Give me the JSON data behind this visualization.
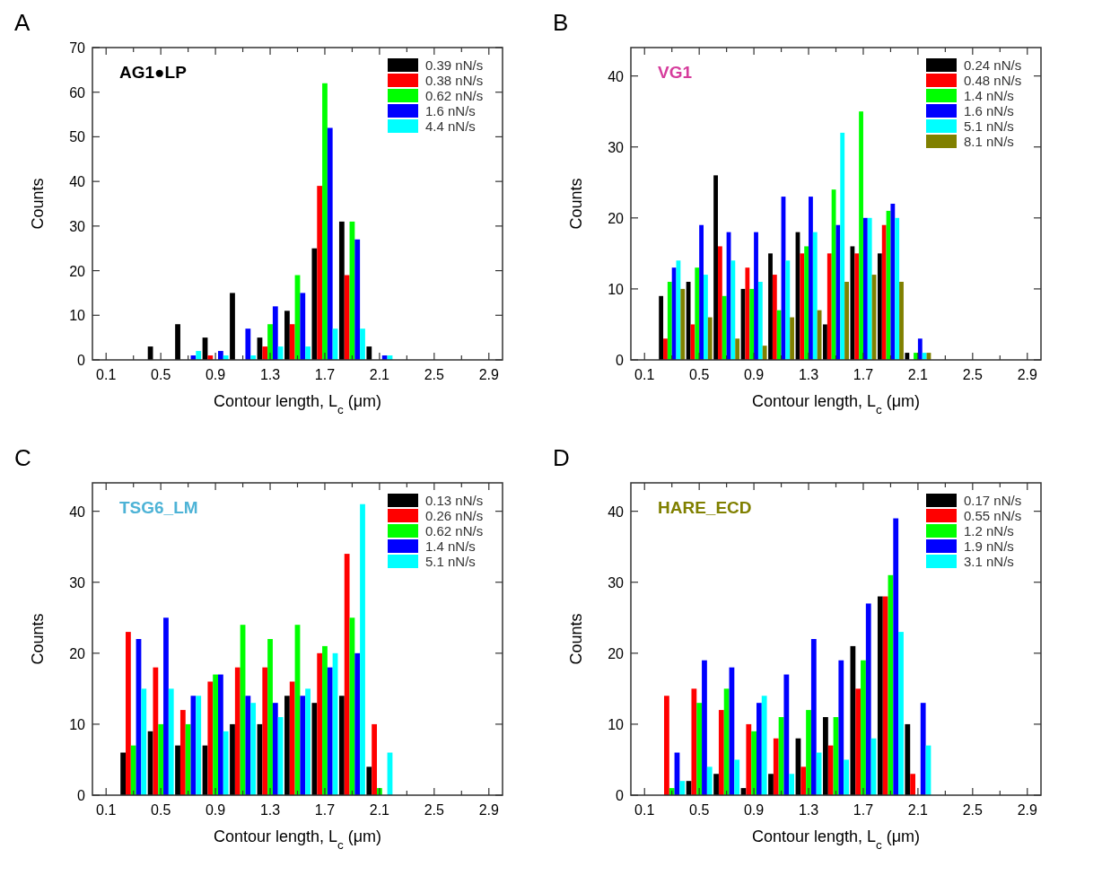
{
  "chart_data": [
    {
      "type": "bar",
      "title": "A",
      "annotations": [
        "AG1●LP"
      ],
      "xlabel": "Contour length, L$_{c}$ (μm)",
      "ylabel": "Counts",
      "x": [
        0.3,
        0.5,
        0.7,
        0.9,
        1.1,
        1.3,
        1.5,
        1.7,
        1.9,
        2.1
      ],
      "xlim": [
        0,
        3
      ],
      "xticks": [
        0.1,
        {
          "value": 0.3,
          "label": null
        },
        0.5,
        {
          "value": 0.7,
          "label": null
        },
        0.9,
        {
          "value": 1.1,
          "label": null
        },
        1.3,
        {
          "value": 1.5,
          "label": null
        },
        1.7,
        {
          "value": 1.9,
          "label": null
        },
        2.1,
        {
          "value": 2.3,
          "label": null
        },
        2.5,
        {
          "value": 2.7,
          "label": null
        },
        2.9
      ],
      "ylim": [
        0,
        70
      ],
      "yticks": [
        0,
        10,
        20,
        30,
        40,
        50,
        60,
        70
      ],
      "legend": "top right",
      "grid": false,
      "series": [
        {
          "name": "0.39 nN/s",
          "color": "#000000",
          "values": [
            0,
            3,
            8,
            5,
            15,
            5,
            11,
            25,
            31,
            3
          ]
        },
        {
          "name": "0.38 nN/s",
          "color": "#ff0000",
          "values": [
            0,
            0,
            0,
            1,
            0,
            3,
            8,
            39,
            19,
            0
          ]
        },
        {
          "name": "0.62 nN/s",
          "color": "#00ff00",
          "values": [
            0,
            0,
            0,
            0,
            0,
            8,
            19,
            62,
            31,
            0
          ]
        },
        {
          "name": "1.6 nN/s",
          "color": "#0000ff",
          "values": [
            0,
            0,
            1,
            2,
            7,
            12,
            15,
            52,
            27,
            1
          ]
        },
        {
          "name": "4.4 nN/s",
          "color": "#00ffff",
          "values": [
            0,
            0,
            2,
            1,
            1,
            3,
            3,
            7,
            7,
            1
          ]
        }
      ]
    },
    {
      "type": "bar",
      "title": "B",
      "annotations": [
        "VG1"
      ],
      "xlabel": "Contour length, L$_{c}$ (μm)",
      "ylabel": "Counts",
      "x": [
        0.3,
        0.5,
        0.7,
        0.9,
        1.1,
        1.3,
        1.5,
        1.7,
        1.9,
        2.1
      ],
      "xlim": [
        0,
        3
      ],
      "xticks": [
        0.1,
        {
          "value": 0.3,
          "label": null
        },
        0.5,
        {
          "value": 0.7,
          "label": null
        },
        0.9,
        {
          "value": 1.1,
          "label": null
        },
        1.3,
        {
          "value": 1.5,
          "label": null
        },
        1.7,
        {
          "value": 1.9,
          "label": null
        },
        2.1,
        {
          "value": 2.3,
          "label": null
        },
        2.5,
        {
          "value": 2.7,
          "label": null
        },
        2.9
      ],
      "ylim": [
        0,
        44
      ],
      "yticks": [
        0,
        10,
        20,
        30,
        40
      ],
      "legend": "top right",
      "grid": false,
      "series": [
        {
          "name": "0.24 nN/s",
          "color": "#000000",
          "values": [
            9,
            11,
            26,
            10,
            15,
            18,
            5,
            16,
            15,
            1
          ]
        },
        {
          "name": "0.48 nN/s",
          "color": "#ff0000",
          "values": [
            3,
            5,
            16,
            13,
            12,
            15,
            15,
            15,
            19,
            0
          ]
        },
        {
          "name": "1.4 nN/s",
          "color": "#00ff00",
          "values": [
            11,
            13,
            9,
            10,
            7,
            16,
            24,
            35,
            21,
            1
          ]
        },
        {
          "name": "1.6 nN/s",
          "color": "#0000ff",
          "values": [
            13,
            19,
            18,
            18,
            23,
            23,
            19,
            20,
            22,
            3
          ]
        },
        {
          "name": "5.1 nN/s",
          "color": "#00ffff",
          "values": [
            14,
            12,
            14,
            11,
            14,
            18,
            32,
            20,
            20,
            1
          ]
        },
        {
          "name": "8.1 nN/s",
          "color": "#808000",
          "values": [
            10,
            6,
            3,
            2,
            6,
            7,
            11,
            12,
            11,
            1
          ]
        }
      ]
    },
    {
      "type": "bar",
      "title": "C",
      "annotations": [
        "TSG6_LM"
      ],
      "xlabel": "Contour length, L$_{c}$ (μm)",
      "ylabel": "Counts",
      "x": [
        0.3,
        0.5,
        0.7,
        0.9,
        1.1,
        1.3,
        1.5,
        1.7,
        1.9,
        2.1
      ],
      "xlim": [
        0,
        3
      ],
      "xticks": [
        0.1,
        {
          "value": 0.3,
          "label": null
        },
        0.5,
        {
          "value": 0.7,
          "label": null
        },
        0.9,
        {
          "value": 1.1,
          "label": null
        },
        1.3,
        {
          "value": 1.5,
          "label": null
        },
        1.7,
        {
          "value": 1.9,
          "label": null
        },
        2.1,
        {
          "value": 2.3,
          "label": null
        },
        2.5,
        {
          "value": 2.7,
          "label": null
        },
        2.9
      ],
      "ylim": [
        0,
        44
      ],
      "yticks": [
        0,
        10,
        20,
        30,
        40
      ],
      "legend": "top right",
      "grid": false,
      "series": [
        {
          "name": "0.13 nN/s",
          "color": "#000000",
          "values": [
            6,
            9,
            7,
            7,
            10,
            10,
            14,
            13,
            14,
            4
          ]
        },
        {
          "name": "0.26 nN/s",
          "color": "#ff0000",
          "values": [
            23,
            18,
            12,
            16,
            18,
            18,
            16,
            20,
            34,
            10
          ]
        },
        {
          "name": "0.62 nN/s",
          "color": "#00ff00",
          "values": [
            7,
            10,
            10,
            17,
            24,
            22,
            24,
            21,
            25,
            1
          ]
        },
        {
          "name": "1.4 nN/s",
          "color": "#0000ff",
          "values": [
            22,
            25,
            14,
            17,
            14,
            13,
            14,
            18,
            20,
            0
          ]
        },
        {
          "name": "5.1 nN/s",
          "color": "#00ffff",
          "values": [
            15,
            15,
            14,
            9,
            13,
            11,
            15,
            20,
            41,
            6
          ]
        }
      ]
    },
    {
      "type": "bar",
      "title": "D",
      "annotations": [
        "HARE_ECD"
      ],
      "xlabel": "Contour length, L$_{c}$ (μm)",
      "ylabel": "Counts",
      "x": [
        0.3,
        0.5,
        0.7,
        0.9,
        1.1,
        1.3,
        1.5,
        1.7,
        1.9,
        2.1
      ],
      "xlim": [
        0,
        3
      ],
      "xticks": [
        0.1,
        {
          "value": 0.3,
          "label": null
        },
        0.5,
        {
          "value": 0.7,
          "label": null
        },
        0.9,
        {
          "value": 1.1,
          "label": null
        },
        1.3,
        {
          "value": 1.5,
          "label": null
        },
        1.7,
        {
          "value": 1.9,
          "label": null
        },
        2.1,
        {
          "value": 2.3,
          "label": null
        },
        2.5,
        {
          "value": 2.7,
          "label": null
        },
        2.9
      ],
      "ylim": [
        0,
        44
      ],
      "yticks": [
        0,
        10,
        20,
        30,
        40
      ],
      "legend": "top right",
      "grid": false,
      "series": [
        {
          "name": "0.17 nN/s",
          "color": "#000000",
          "values": [
            0,
            2,
            3,
            1,
            3,
            8,
            11,
            21,
            28,
            10
          ]
        },
        {
          "name": "0.55 nN/s",
          "color": "#ff0000",
          "values": [
            14,
            15,
            12,
            10,
            8,
            4,
            7,
            15,
            28,
            3
          ]
        },
        {
          "name": "1.2 nN/s",
          "color": "#00ff00",
          "values": [
            1,
            13,
            15,
            9,
            11,
            12,
            11,
            19,
            31,
            0
          ]
        },
        {
          "name": "1.9 nN/s",
          "color": "#0000ff",
          "values": [
            6,
            19,
            18,
            13,
            17,
            22,
            19,
            27,
            39,
            13
          ]
        },
        {
          "name": "3.1 nN/s",
          "color": "#00ffff",
          "values": [
            2,
            4,
            5,
            14,
            3,
            6,
            5,
            8,
            23,
            7
          ]
        }
      ]
    }
  ]
}
